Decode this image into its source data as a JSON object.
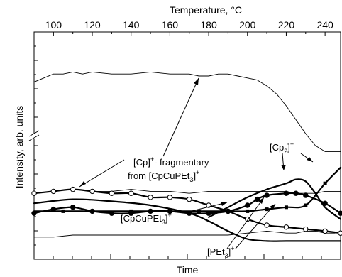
{
  "chart_data": {
    "type": "line",
    "title": "",
    "xlabel": "Time",
    "ylabel": "Intensity, arb. units",
    "x2label": "Temperature, °C",
    "x2lim": [
      90,
      248
    ],
    "x2ticks": [
      100,
      120,
      140,
      160,
      180,
      200,
      220,
      240
    ],
    "ylim": [
      0,
      100
    ],
    "axis_break": "y",
    "grid": false,
    "legend": "none",
    "series": [
      {
        "marker": "none",
        "style": "thin",
        "x": [
          90,
          95,
          100,
          105,
          110,
          115,
          120,
          130,
          140,
          150,
          160,
          170,
          175,
          180,
          185,
          190,
          195,
          200,
          205,
          210,
          215,
          220,
          225,
          230,
          235,
          240,
          245,
          248
        ],
        "y": [
          82,
          84,
          86,
          86,
          87,
          86,
          87,
          86,
          86,
          87,
          86,
          86,
          85,
          85,
          86,
          86,
          85,
          84,
          83,
          80,
          76,
          70,
          63,
          56,
          50,
          47,
          47,
          47
        ]
      },
      {
        "marker": "none",
        "style": "thin",
        "x": [
          90,
          100,
          110,
          120,
          130,
          140,
          150,
          160,
          170,
          180,
          190,
          200,
          210,
          215,
          220,
          225,
          230,
          235,
          240,
          245,
          248
        ],
        "y": [
          26,
          27,
          28,
          27,
          27,
          28,
          27,
          27,
          26,
          27,
          27,
          27,
          27,
          27,
          27,
          26,
          26,
          26,
          27,
          27,
          27
        ]
      },
      {
        "marker": "none",
        "style": "thin",
        "x": [
          90,
          100,
          110,
          120,
          130,
          140,
          150,
          160,
          170,
          180,
          190,
          200,
          210,
          220,
          225,
          230,
          235,
          240,
          245,
          248
        ],
        "y": [
          4,
          4,
          5,
          5,
          5,
          5,
          5,
          5,
          5,
          5,
          5,
          6,
          7,
          6,
          6,
          7,
          7,
          6,
          6,
          7
        ]
      },
      {
        "marker": "square",
        "x": [
          90,
          105,
          120,
          140,
          160,
          175,
          190,
          200,
          210,
          220,
          230,
          240,
          248
        ],
        "y": [
          17,
          17,
          17,
          17,
          17,
          17,
          17,
          17,
          18,
          19,
          20,
          31,
          39
        ]
      },
      {
        "marker": "open-circle",
        "x": [
          90,
          100,
          110,
          120,
          130,
          140,
          150,
          160,
          170,
          180,
          190,
          200,
          210,
          220,
          230,
          240,
          248
        ],
        "y": [
          26,
          27,
          28,
          27,
          26,
          26,
          24,
          24,
          23,
          20,
          17,
          13,
          10,
          9,
          8,
          7,
          6
        ]
      },
      {
        "marker": "filled-circle",
        "x": [
          90,
          100,
          110,
          120,
          130,
          140,
          150,
          160,
          170,
          180,
          190,
          200,
          205,
          210,
          220,
          225,
          230,
          240,
          248
        ],
        "y": [
          16,
          18,
          19,
          17,
          16,
          16,
          17,
          17,
          16,
          16,
          17,
          20,
          23,
          25,
          26,
          26,
          25,
          21,
          16
        ]
      },
      {
        "marker": "none",
        "x": [
          90,
          110,
          130,
          150,
          170,
          180,
          190,
          200,
          210,
          220,
          230,
          240,
          248
        ],
        "y": [
          21,
          23,
          22,
          20,
          16,
          12,
          7,
          3,
          2,
          2,
          2,
          2,
          2
        ]
      },
      {
        "marker": "none",
        "x": [
          180,
          190,
          200,
          210,
          220,
          225,
          230,
          235,
          240,
          248
        ],
        "y": [
          14,
          19,
          24,
          28,
          31,
          33,
          32,
          26,
          19,
          13
        ]
      }
    ],
    "annotations": [
      {
        "lines": [
          {
            "text": "[Cp]",
            "sup": "+",
            "rest": "- fragmentary"
          },
          {
            "text": "from [CpCuPEt",
            "sub": "3",
            "rest": "]",
            "sup": "+"
          }
        ]
      },
      {
        "text": "[Cp",
        "sub": "2",
        "rest": "]",
        "sup": "+"
      },
      {
        "text": "[CpCuPEt",
        "sub": "3",
        "rest": "]",
        "sup": "+"
      },
      {
        "text": "[PEt",
        "sub": "3",
        "rest": "]",
        "sup": "+"
      }
    ]
  }
}
